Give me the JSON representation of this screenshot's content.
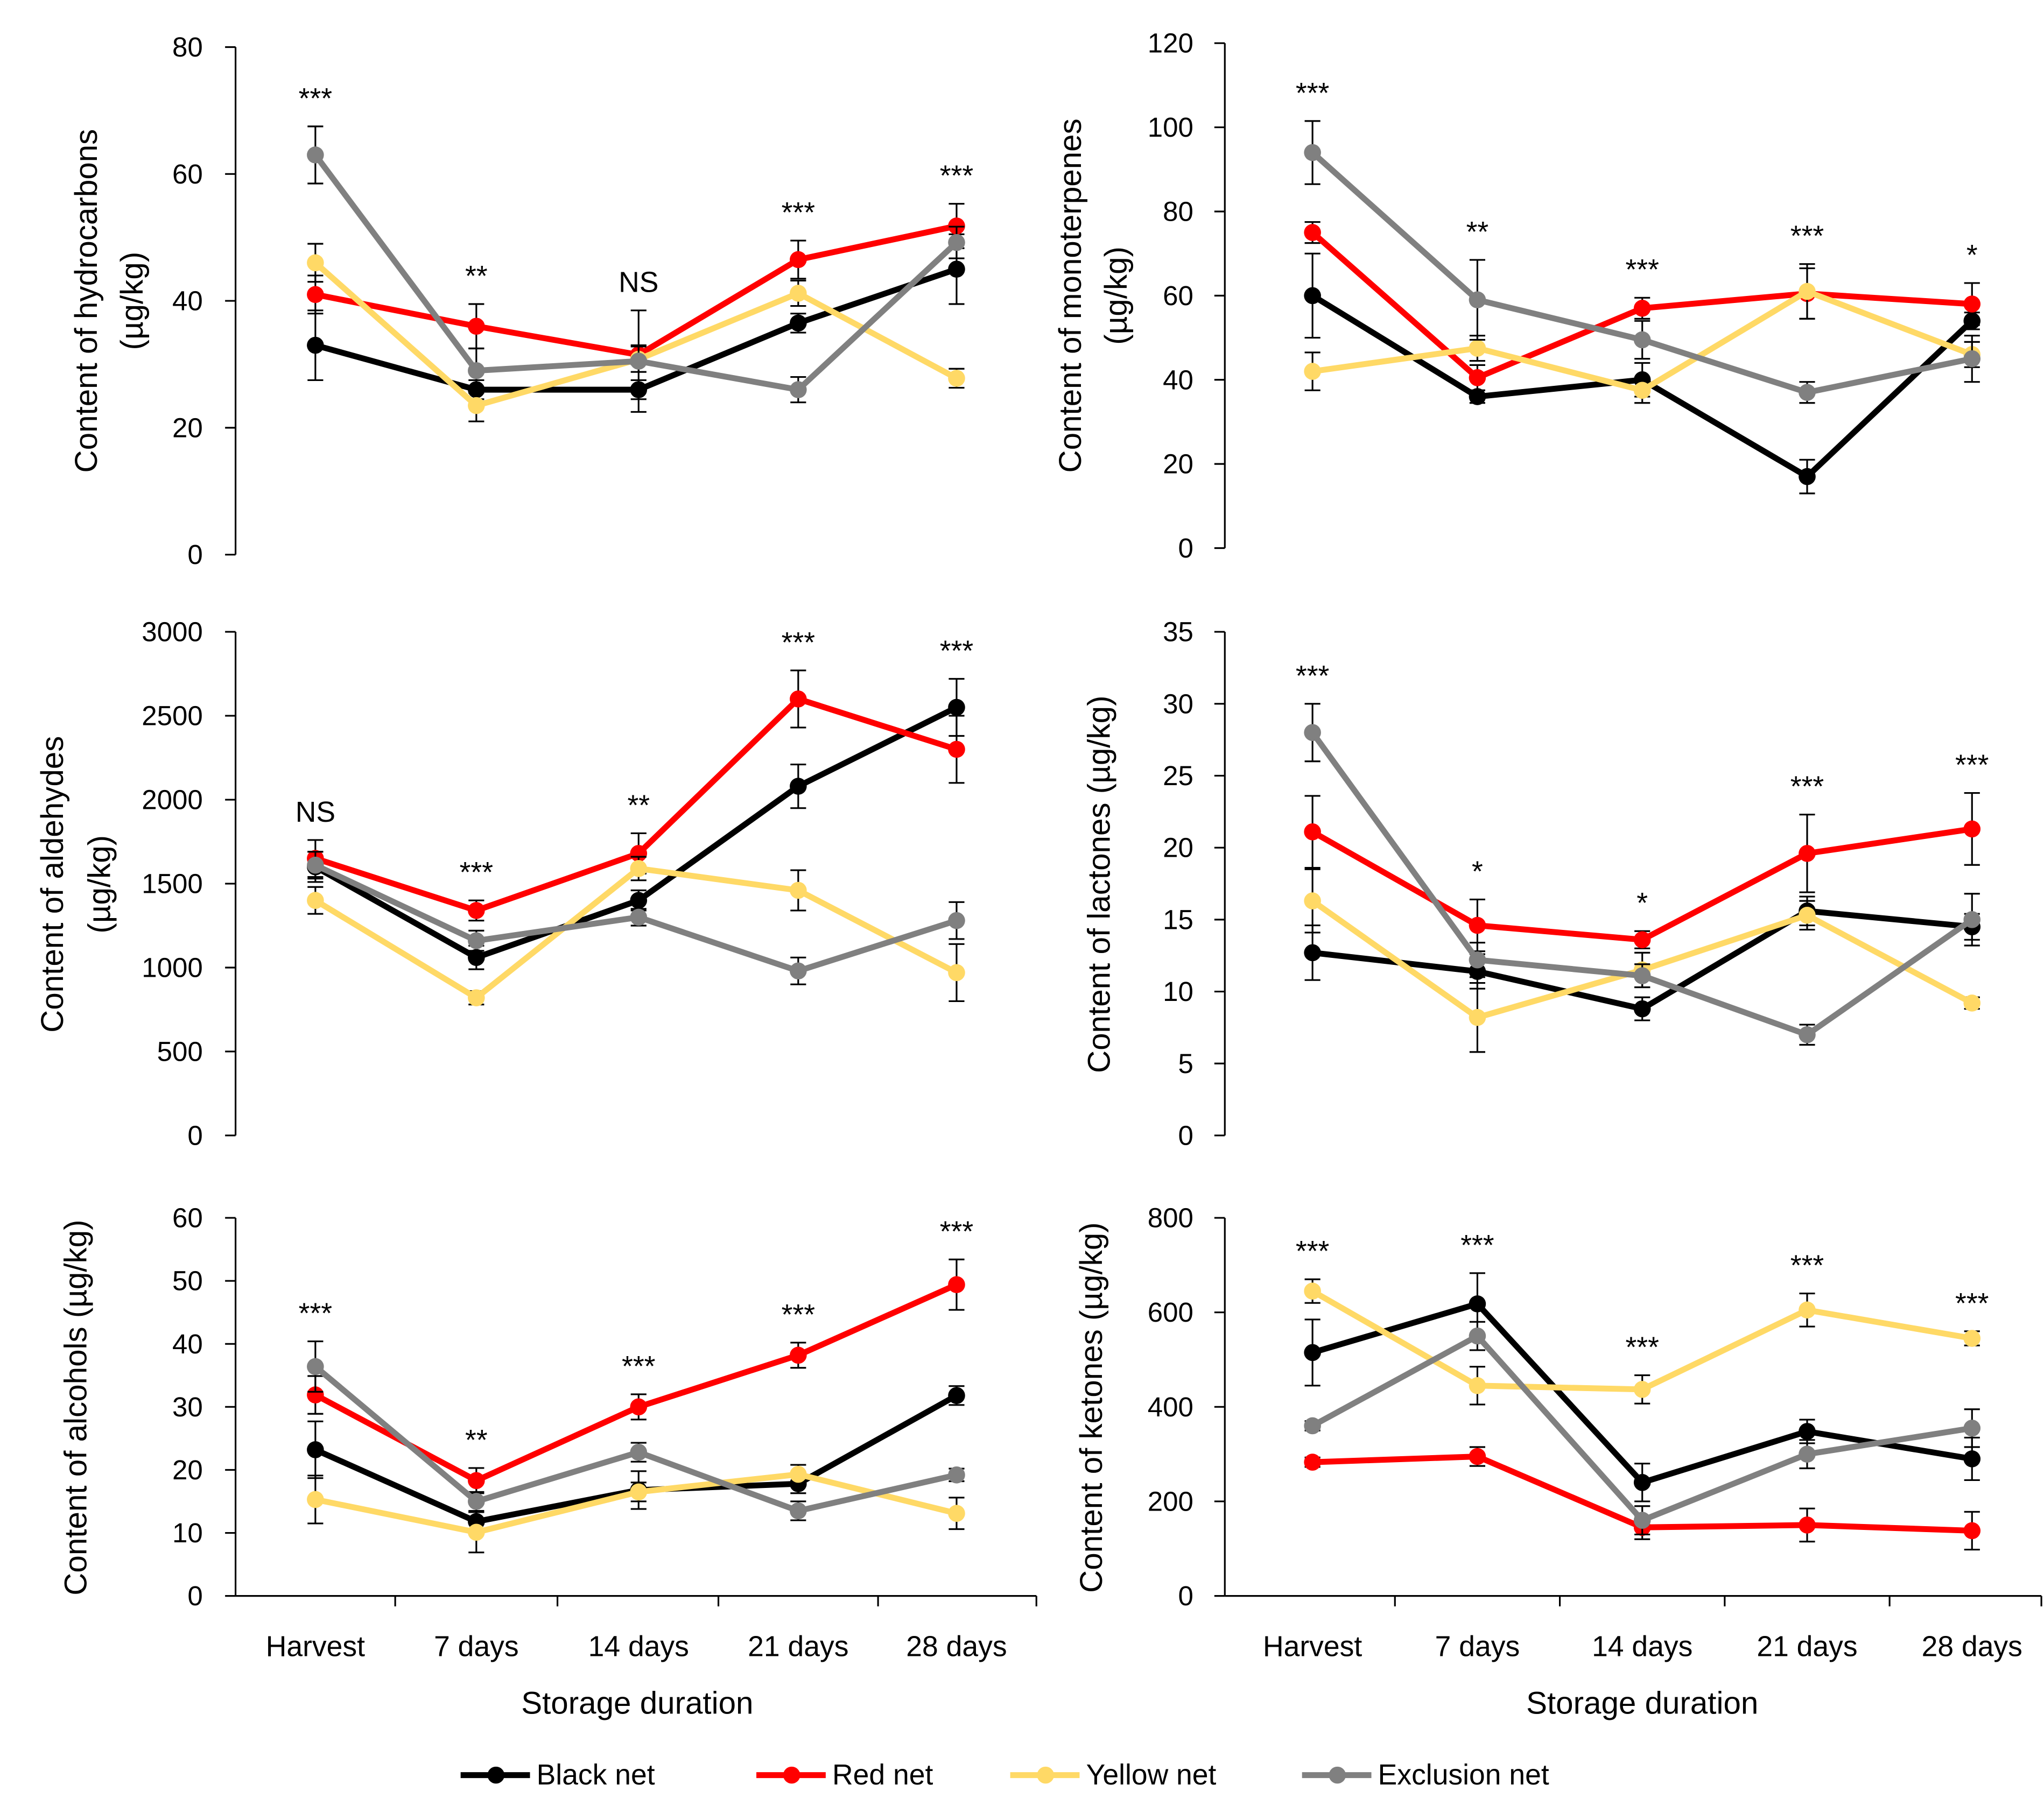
{
  "chart_data": {
    "type": "line",
    "categories": [
      "Harvest",
      "7 days",
      "14 days",
      "21 days",
      "28 days"
    ],
    "xlabel": "Storage duration",
    "series": [
      {
        "name": "Black net",
        "color": "#000000"
      },
      {
        "name": "Red net",
        "color": "#FF0000"
      },
      {
        "name": "Yellow net",
        "color": "#FFD966"
      },
      {
        "name": "Exclusion net",
        "color": "#808080"
      }
    ],
    "panels": [
      {
        "ylabel_lines": [
          "Content of hydrocarbons",
          "(µg/kg)"
        ],
        "ylim": [
          0,
          80
        ],
        "yticks": [
          0,
          20,
          40,
          60,
          80
        ],
        "significance": [
          "***",
          "**",
          "NS",
          "***",
          "***"
        ],
        "values": [
          [
            33,
            26,
            26,
            36.5,
            45
          ],
          [
            41,
            36,
            31.5,
            46.5,
            51.8
          ],
          [
            46,
            23.5,
            30.8,
            41.2,
            27.8
          ],
          [
            63,
            29,
            30.5,
            26,
            49.2
          ]
        ],
        "errors": [
          [
            5.5,
            1.5,
            1.5,
            1.5,
            5.5
          ],
          [
            3,
            3.5,
            1.5,
            3,
            3.5
          ],
          [
            3,
            2.5,
            2,
            2,
            1.5
          ],
          [
            4.5,
            3.5,
            8,
            2,
            2.5
          ]
        ]
      },
      {
        "ylabel_lines": [
          "Content of monoterpenes",
          "(µg/kg)"
        ],
        "ylim": [
          0,
          120
        ],
        "yticks": [
          0,
          20,
          40,
          60,
          80,
          100,
          120
        ],
        "significance": [
          "***",
          "**",
          "***",
          "***",
          "*"
        ],
        "values": [
          [
            60,
            36,
            40,
            17,
            54
          ],
          [
            75,
            40.5,
            57,
            60.5,
            58
          ],
          [
            42,
            47.5,
            37.5,
            61,
            46
          ],
          [
            94,
            59,
            49.5,
            37,
            45
          ]
        ],
        "errors": [
          [
            10,
            1.5,
            4,
            4,
            2
          ],
          [
            2.5,
            3,
            2.5,
            6,
            5
          ],
          [
            4.5,
            3,
            3,
            6.5,
            3
          ],
          [
            7.5,
            9.5,
            4.5,
            2.5,
            5.5
          ]
        ]
      },
      {
        "ylabel_lines": [
          "Content of aldehydes",
          "(µg/kg)"
        ],
        "ylim": [
          0,
          3000
        ],
        "yticks": [
          0,
          500,
          1000,
          1500,
          2000,
          2500,
          3000
        ],
        "significance": [
          "NS",
          "***",
          "**",
          "***",
          "***"
        ],
        "values": [
          [
            1600,
            1060,
            1400,
            2080,
            2550
          ],
          [
            1650,
            1340,
            1680,
            2600,
            2300
          ],
          [
            1400,
            820,
            1590,
            1460,
            970
          ],
          [
            1610,
            1160,
            1300,
            980,
            1280
          ]
        ],
        "errors": [
          [
            90,
            70,
            60,
            130,
            170
          ],
          [
            110,
            60,
            120,
            170,
            200
          ],
          [
            80,
            40,
            70,
            120,
            170
          ],
          [
            80,
            60,
            50,
            80,
            110
          ]
        ]
      },
      {
        "ylabel_lines": [
          "Content of lactones (µg/kg)"
        ],
        "ylim": [
          0,
          35
        ],
        "yticks": [
          0,
          5,
          10,
          15,
          20,
          25,
          30,
          35
        ],
        "significance": [
          "***",
          "*",
          "*",
          "***",
          "***"
        ],
        "values": [
          [
            12.7,
            11.4,
            8.8,
            15.6,
            14.5
          ],
          [
            21.1,
            14.6,
            13.6,
            19.6,
            21.3
          ],
          [
            16.3,
            8.2,
            11.5,
            15.3,
            9.2
          ],
          [
            28,
            12.2,
            11.1,
            7,
            15
          ]
        ],
        "errors": [
          [
            1.9,
            1.2,
            0.8,
            1.0,
            0.9
          ],
          [
            2.5,
            1.8,
            0.6,
            2.7,
            2.5
          ],
          [
            2.2,
            2.4,
            1.2,
            1.0,
            0.4
          ],
          [
            2.0,
            1.2,
            0.8,
            0.7,
            1.8
          ]
        ]
      },
      {
        "ylabel_lines": [
          "Content of alcohols (µg/kg)"
        ],
        "ylim": [
          0,
          60
        ],
        "yticks": [
          0,
          10,
          20,
          30,
          40,
          50,
          60
        ],
        "significance": [
          "***",
          "**",
          "***",
          "***",
          "***"
        ],
        "values": [
          [
            23.2,
            11.8,
            16.8,
            17.8,
            31.8
          ],
          [
            31.9,
            18.3,
            30,
            38.2,
            49.4
          ],
          [
            15.3,
            10.1,
            16.5,
            19.3,
            13.1
          ],
          [
            36.4,
            15,
            22.8,
            13.5,
            19.2
          ]
        ],
        "errors": [
          [
            4.5,
            1.5,
            3,
            1.5,
            1.5
          ],
          [
            3,
            2,
            2,
            2,
            4
          ],
          [
            3.8,
            3.2,
            1.5,
            1.5,
            2.5
          ],
          [
            4,
            1.5,
            1.5,
            1.5,
            1
          ]
        ]
      },
      {
        "ylabel_lines": [
          "Content of ketones (µg/kg)"
        ],
        "ylim": [
          0,
          800
        ],
        "yticks": [
          0,
          200,
          400,
          600,
          800
        ],
        "significance": [
          "***",
          "***",
          "***",
          "***",
          "***"
        ],
        "values": [
          [
            515,
            618,
            240,
            348,
            290
          ],
          [
            283,
            295,
            145,
            150,
            138
          ],
          [
            645,
            445,
            437,
            605,
            545
          ],
          [
            360,
            550,
            160,
            300,
            355
          ]
        ],
        "errors": [
          [
            70,
            65,
            40,
            25,
            45
          ],
          [
            10,
            20,
            25,
            35,
            40
          ],
          [
            25,
            40,
            30,
            35,
            15
          ],
          [
            10,
            30,
            30,
            30,
            40
          ]
        ]
      }
    ]
  }
}
